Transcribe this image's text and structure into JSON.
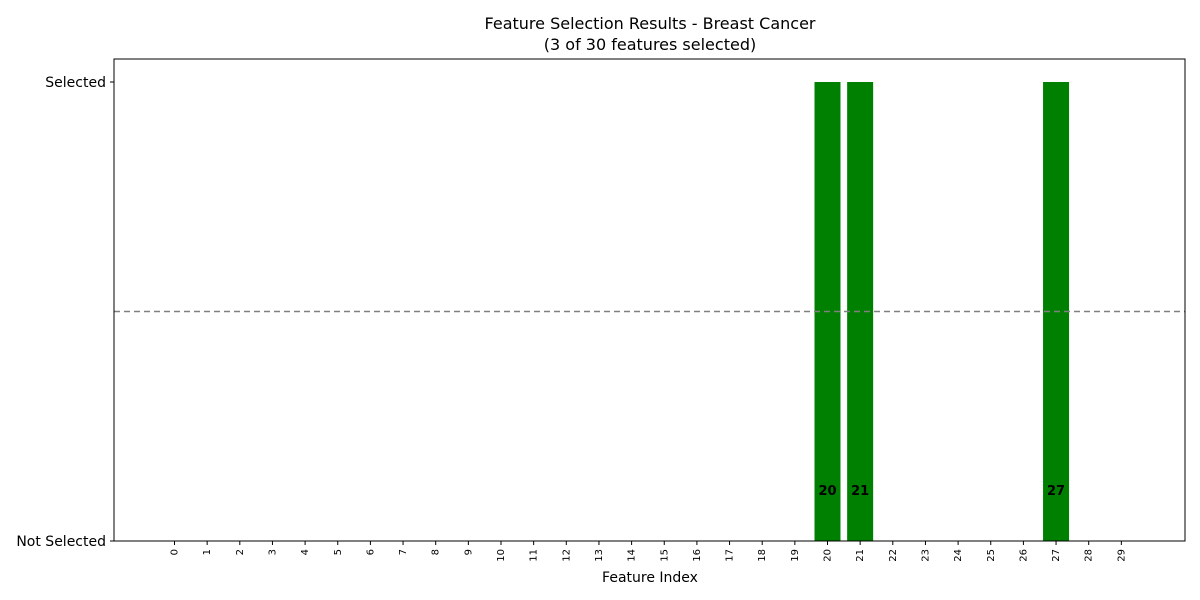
{
  "chart_data": {
    "type": "bar",
    "title": "Feature Selection Results - Breast Cancer",
    "subtitle": "(3 of 30 features selected)",
    "xlabel": "Feature Index",
    "ylabel": "",
    "categories": [
      "0",
      "1",
      "2",
      "3",
      "4",
      "5",
      "6",
      "7",
      "8",
      "9",
      "10",
      "11",
      "12",
      "13",
      "14",
      "15",
      "16",
      "17",
      "18",
      "19",
      "20",
      "21",
      "22",
      "23",
      "24",
      "25",
      "26",
      "27",
      "28",
      "29"
    ],
    "values": [
      0,
      0,
      0,
      0,
      0,
      0,
      0,
      0,
      0,
      0,
      0,
      0,
      0,
      0,
      0,
      0,
      0,
      0,
      0,
      0,
      1,
      1,
      0,
      0,
      0,
      0,
      0,
      1,
      0,
      0
    ],
    "ylim": [
      0,
      1
    ],
    "ytick_labels": [
      "Not Selected",
      "Selected"
    ],
    "reference_line": 0.5,
    "bar_color": "#008000",
    "reference_line_color": "#808080",
    "grid": false
  }
}
